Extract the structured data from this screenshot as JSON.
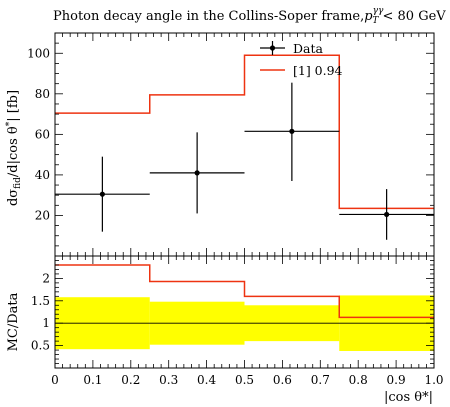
{
  "chart_data": [
    {
      "type": "line",
      "title": "Photon decay angle in the Collins-Soper frame, p_T^γγ < 80 GeV",
      "title_parts": {
        "main": "Photon decay angle in the Collins-Soper frame,",
        "var": "p",
        "sub": "T",
        "sup": "γγ",
        "rest": " < 80 GeV"
      },
      "ylabel": "dσ_fid / d|cos θ*| [fb]",
      "ylabel_parts": {
        "a": "dσ",
        "sub": "fid",
        "b": "/d|cos θ",
        "sup": "*",
        "c": "| [fb]"
      },
      "xlim": [
        0,
        1.0
      ],
      "ylim": [
        0,
        110
      ],
      "yticks": [
        20,
        40,
        60,
        80,
        100
      ],
      "grid": false,
      "legend_position": "top-right",
      "series": [
        {
          "name": "Data",
          "style": "points-with-errors",
          "color": "#000000",
          "bins": [
            [
              0,
              0.25
            ],
            [
              0.25,
              0.5
            ],
            [
              0.5,
              0.75
            ],
            [
              0.75,
              1.0
            ]
          ],
          "x": [
            0.125,
            0.375,
            0.625,
            0.875
          ],
          "y": [
            30.5,
            41,
            61.5,
            20.5
          ],
          "yerr_low": [
            18.5,
            20,
            24.5,
            12.5
          ],
          "yerr_high": [
            18.5,
            20,
            24,
            12.5
          ]
        },
        {
          "name": "[1] 0.94",
          "style": "histogram",
          "color": "#ee3311",
          "bins": [
            [
              0,
              0.25
            ],
            [
              0.25,
              0.5
            ],
            [
              0.5,
              0.75
            ],
            [
              0.75,
              1.0
            ]
          ],
          "y": [
            70.5,
            79.5,
            99,
            23.5
          ]
        }
      ]
    },
    {
      "type": "line",
      "ylabel": "MC/Data",
      "xlabel": "|cos θ*|",
      "xlim": [
        0,
        1.0
      ],
      "ylim": [
        0,
        2.5
      ],
      "xticks": [
        "0",
        "0.1",
        "0.2",
        "0.3",
        "0.4",
        "0.5",
        "0.6",
        "0.7",
        "0.8",
        "0.9",
        "1.0"
      ],
      "yticks": [
        "0.5",
        "1",
        "1.5",
        "2"
      ],
      "ytick_values": [
        0.5,
        1,
        1.5,
        2
      ],
      "reference_line": 1,
      "uncertainty_band": {
        "color": "#ffff00",
        "bins": [
          [
            0,
            0.25
          ],
          [
            0.25,
            0.5
          ],
          [
            0.5,
            0.75
          ],
          [
            0.75,
            1.0
          ]
        ],
        "low": [
          0.42,
          0.52,
          0.6,
          0.38
        ],
        "high": [
          1.58,
          1.48,
          1.4,
          1.62
        ]
      },
      "series": [
        {
          "name": "[1] 0.94",
          "style": "histogram",
          "color": "#ee3311",
          "bins": [
            [
              0,
              0.25
            ],
            [
              0.25,
              0.5
            ],
            [
              0.5,
              0.75
            ],
            [
              0.75,
              1.0
            ]
          ],
          "y": [
            2.3,
            1.93,
            1.6,
            1.13
          ]
        }
      ]
    }
  ]
}
